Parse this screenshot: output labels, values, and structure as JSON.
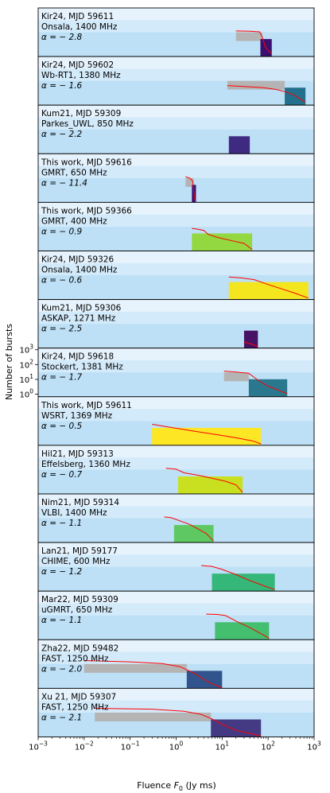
{
  "chart_data": {
    "type": "area",
    "title": "",
    "xlabel": "Fluence $F_0$ (Jy ms)",
    "xlabel_main": "Fluence ",
    "xlabel_sym": "F",
    "xlabel_sub": "0",
    "xlabel_unit": " (Jy ms)",
    "ylabel": "Number of bursts",
    "xscale": "log",
    "xlim": [
      0.001,
      1000
    ],
    "x_ticks": [
      {
        "base": "10",
        "exp": "−3"
      },
      {
        "base": "10",
        "exp": "−2"
      },
      {
        "base": "10",
        "exp": "−1"
      },
      {
        "base": "10",
        "exp": "0"
      },
      {
        "base": "10",
        "exp": "1"
      },
      {
        "base": "10",
        "exp": "2"
      },
      {
        "base": "10",
        "exp": "3"
      }
    ],
    "y_ticks_panel": "Kir24, MJD 59618",
    "y_ticks": [
      {
        "base": "10",
        "exp": "3"
      },
      {
        "base": "10",
        "exp": "2"
      },
      {
        "base": "10",
        "exp": "1"
      },
      {
        "base": "10",
        "exp": "0"
      }
    ],
    "panel_band_colors": [
      "#bde0f6",
      "#d3eafa",
      "#e6f3fd"
    ],
    "cdf_line_color": "#ff0000",
    "panels": [
      {
        "line1": "Kir24, MJD 59611",
        "line2": "Onsala, 1400 MHz",
        "alpha_label": "α = − 2.8",
        "gray": [
          20,
          75
        ],
        "bar": [
          68,
          120
        ],
        "bar_color": "#3b0f70",
        "cdf": [
          [
            20,
            0.85
          ],
          [
            40,
            0.84
          ],
          [
            65,
            0.82
          ],
          [
            75,
            0.65
          ],
          [
            85,
            0.35
          ],
          [
            100,
            0.2
          ],
          [
            120,
            0.1
          ]
        ]
      },
      {
        "line1": "Kir24, MJD 59602",
        "line2": "Wb-RT1, 1380 MHz",
        "alpha_label": "α = − 1.6",
        "gray": [
          13,
          230
        ],
        "bar": [
          230,
          650
        ],
        "bar_color": "#22708b",
        "cdf": [
          [
            13,
            0.65
          ],
          [
            30,
            0.62
          ],
          [
            80,
            0.58
          ],
          [
            150,
            0.52
          ],
          [
            230,
            0.45
          ],
          [
            350,
            0.35
          ],
          [
            500,
            0.2
          ],
          [
            650,
            0.1
          ]
        ]
      },
      {
        "line1": "Kum21, MJD 59309",
        "line2": "Parkes_UWL, 850 MHz",
        "alpha_label": "α = − 2.2",
        "gray": null,
        "bar": [
          14,
          40
        ],
        "bar_color": "#3e2a80",
        "cdf": []
      },
      {
        "line1": "This work, MJD 59616",
        "line2": "GMRT, 650 MHz",
        "alpha_label": "α = − 11.4",
        "gray": [
          1.6,
          2.4
        ],
        "bar": [
          2.2,
          2.7
        ],
        "bar_color": "#3b0f70",
        "cdf": [
          [
            1.6,
            0.85
          ],
          [
            2.0,
            0.8
          ],
          [
            2.3,
            0.7
          ],
          [
            2.4,
            0.4
          ],
          [
            2.5,
            0.15
          ],
          [
            2.6,
            0.05
          ]
        ]
      },
      {
        "line1": "This work, MJD 59366",
        "line2": "GMRT, 400 MHz",
        "alpha_label": "α = − 0.9",
        "gray": null,
        "bar": [
          2.2,
          45
        ],
        "bar_color": "#93d741",
        "cdf": [
          [
            2.2,
            0.75
          ],
          [
            3,
            0.72
          ],
          [
            4,
            0.68
          ],
          [
            5,
            0.55
          ],
          [
            8,
            0.45
          ],
          [
            15,
            0.35
          ],
          [
            30,
            0.25
          ],
          [
            45,
            0.05
          ]
        ]
      },
      {
        "line1": "Kir24, MJD 59326",
        "line2": "Onsala, 1400 MHz",
        "alpha_label": "α = − 0.6",
        "gray": null,
        "bar": [
          14,
          750
        ],
        "bar_color": "#f3e51e",
        "cdf": [
          [
            14,
            0.75
          ],
          [
            25,
            0.72
          ],
          [
            50,
            0.66
          ],
          [
            100,
            0.5
          ],
          [
            200,
            0.35
          ],
          [
            400,
            0.2
          ],
          [
            750,
            0.05
          ]
        ]
      },
      {
        "line1": "Kum21, MJD 59306",
        "line2": "ASKAP, 1271 MHz",
        "alpha_label": "α = − 2.5",
        "gray": null,
        "bar": [
          30,
          60
        ],
        "bar_color": "#471365",
        "cdf": [
          [
            30,
            0.2
          ],
          [
            40,
            0.15
          ],
          [
            55,
            0.08
          ],
          [
            60,
            0.03
          ]
        ]
      },
      {
        "line1": "Kir24, MJD 59618",
        "line2": "Stockert, 1381 MHz",
        "alpha_label": "α = − 1.7",
        "gray": [
          11,
          38
        ],
        "bar": [
          38,
          260
        ],
        "bar_color": "#2a788e",
        "cdf": [
          [
            11,
            0.85
          ],
          [
            20,
            0.82
          ],
          [
            38,
            0.78
          ],
          [
            60,
            0.55
          ],
          [
            100,
            0.35
          ],
          [
            180,
            0.2
          ],
          [
            260,
            0.1
          ]
        ]
      },
      {
        "line1": "This work, MJD 59611",
        "line2": "WSRT, 1369 MHz",
        "alpha_label": "α = − 0.5",
        "gray": null,
        "bar": [
          0.3,
          70
        ],
        "bar_color": "#fde725",
        "cdf": [
          [
            0.3,
            0.7
          ],
          [
            0.6,
            0.62
          ],
          [
            1.2,
            0.55
          ],
          [
            3,
            0.45
          ],
          [
            8,
            0.35
          ],
          [
            20,
            0.25
          ],
          [
            45,
            0.15
          ],
          [
            70,
            0.05
          ]
        ]
      },
      {
        "line1": "Hil21, MJD 59313",
        "line2": "Effelsberg, 1360 MHz",
        "alpha_label": "α = − 0.7",
        "gray": null,
        "bar": [
          1.1,
          28
        ],
        "bar_color": "#c8e020",
        "cdf": [
          [
            0.6,
            0.85
          ],
          [
            1.0,
            0.82
          ],
          [
            1.5,
            0.7
          ],
          [
            3,
            0.62
          ],
          [
            6,
            0.52
          ],
          [
            12,
            0.42
          ],
          [
            20,
            0.3
          ],
          [
            28,
            0.05
          ]
        ]
      },
      {
        "line1": "Nim21, MJD 59314",
        "line2": "VLBI, 1400 MHz",
        "alpha_label": "α = − 1.1",
        "gray": null,
        "bar": [
          0.9,
          6.5
        ],
        "bar_color": "#5ec962",
        "cdf": [
          [
            0.55,
            0.85
          ],
          [
            0.8,
            0.82
          ],
          [
            1.2,
            0.72
          ],
          [
            2,
            0.6
          ],
          [
            3,
            0.45
          ],
          [
            4.5,
            0.3
          ],
          [
            6.5,
            0.05
          ]
        ]
      },
      {
        "line1": "Lan21, MJD 59177",
        "line2": "CHIME, 600 MHz",
        "alpha_label": "α = − 1.2",
        "gray": null,
        "bar": [
          6,
          140
        ],
        "bar_color": "#35b779",
        "cdf": [
          [
            3.5,
            0.85
          ],
          [
            6,
            0.82
          ],
          [
            10,
            0.72
          ],
          [
            20,
            0.55
          ],
          [
            40,
            0.35
          ],
          [
            80,
            0.18
          ],
          [
            140,
            0.05
          ]
        ]
      },
      {
        "line1": "Mar22, MJD 59309",
        "line2": "uGMRT, 650 MHz",
        "alpha_label": "α = − 1.1",
        "gray": null,
        "bar": [
          7,
          105
        ],
        "bar_color": "#44bf70",
        "cdf": [
          [
            4.5,
            0.85
          ],
          [
            8,
            0.84
          ],
          [
            12,
            0.8
          ],
          [
            20,
            0.62
          ],
          [
            40,
            0.4
          ],
          [
            70,
            0.2
          ],
          [
            105,
            0.05
          ]
        ]
      },
      {
        "line1": "Zha22, MJD 59482",
        "line2": "FAST, 1250 MHz",
        "alpha_label": "α = − 2.0",
        "gray": [
          0.01,
          1.7
        ],
        "bar": [
          1.7,
          10
        ],
        "bar_color": "#31548c",
        "cdf": [
          [
            0.01,
            0.92
          ],
          [
            0.1,
            0.88
          ],
          [
            0.5,
            0.82
          ],
          [
            1.2,
            0.72
          ],
          [
            2.5,
            0.5
          ],
          [
            4,
            0.3
          ],
          [
            6,
            0.15
          ],
          [
            10,
            0.02
          ]
        ]
      },
      {
        "line1": "Xu 21, MJD 59307",
        "line2": "FAST, 1250 MHz",
        "alpha_label": "α = − 2.1",
        "gray": [
          0.017,
          5.7
        ],
        "bar": [
          5.7,
          70
        ],
        "bar_color": "#443a83",
        "cdf": [
          [
            0.017,
            0.95
          ],
          [
            0.3,
            0.92
          ],
          [
            1.5,
            0.85
          ],
          [
            3.5,
            0.75
          ],
          [
            6,
            0.6
          ],
          [
            10,
            0.42
          ],
          [
            20,
            0.22
          ],
          [
            45,
            0.1
          ],
          [
            70,
            0.03
          ]
        ]
      }
    ]
  }
}
